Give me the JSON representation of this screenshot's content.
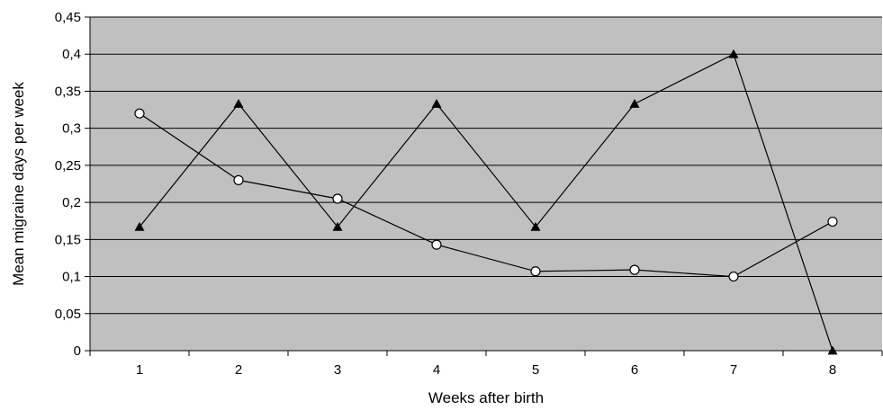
{
  "chart_data": {
    "type": "line",
    "title": "",
    "xlabel": "Weeks after birth",
    "ylabel": "Mean migraine days per week",
    "categories": [
      "1",
      "2",
      "3",
      "4",
      "5",
      "6",
      "7",
      "8"
    ],
    "y_ticks": [
      "0",
      "0,05",
      "0,1",
      "0,15",
      "0,2",
      "0,25",
      "0,3",
      "0,35",
      "0,4",
      "0,45"
    ],
    "ylim": [
      0,
      0.45
    ],
    "grid": true,
    "legend": "none",
    "plot_background": "#c0c0c0",
    "series": [
      {
        "marker": "triangle-filled",
        "color": "#000000",
        "values": [
          0.167,
          0.333,
          0.167,
          0.333,
          0.167,
          0.333,
          0.4,
          0
        ]
      },
      {
        "marker": "circle-open",
        "color": "#000000",
        "values": [
          0.32,
          0.23,
          0.205,
          0.143,
          0.107,
          0.109,
          0.1,
          0.174
        ]
      }
    ]
  }
}
